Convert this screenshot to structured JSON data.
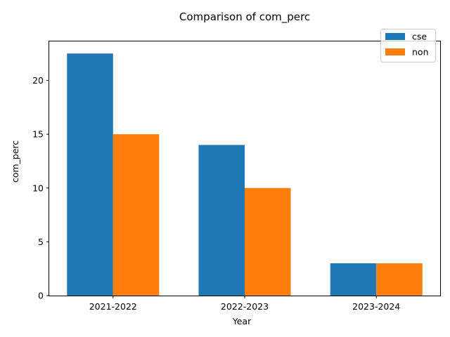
{
  "chart_data": {
    "type": "bar",
    "title": "Comparison of com_perc",
    "xlabel": "Year",
    "ylabel": "com_perc",
    "categories": [
      "2021-2022",
      "2022-2023",
      "2023-2024"
    ],
    "series": [
      {
        "name": "cse",
        "values": [
          22.5,
          14,
          3
        ],
        "color": "#1f77b4"
      },
      {
        "name": "non",
        "values": [
          15,
          10,
          3
        ],
        "color": "#ff7f0e"
      }
    ],
    "ylim": [
      0,
      23.625
    ],
    "yticks": [
      0,
      5,
      10,
      15,
      20
    ],
    "grid": false,
    "legend_position": "top-right"
  }
}
